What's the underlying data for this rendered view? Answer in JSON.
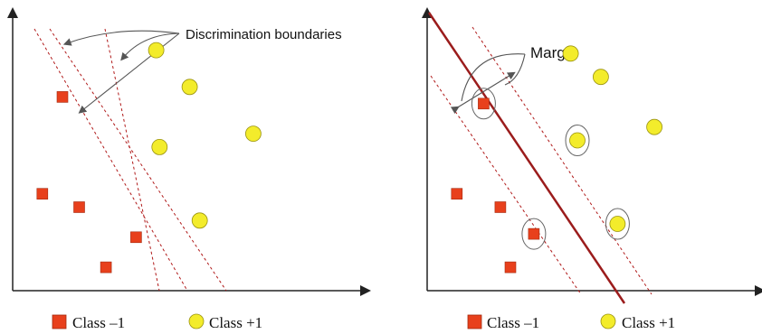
{
  "left_panel": {
    "annotation": "Discrimination boundaries",
    "class_neg_points": [
      [
        1.0,
        5.8
      ],
      [
        0.4,
        2.9
      ],
      [
        1.5,
        2.5
      ],
      [
        2.3,
        0.7
      ],
      [
        3.2,
        1.6
      ]
    ],
    "class_pos_points": [
      [
        3.8,
        7.2
      ],
      [
        4.8,
        6.1
      ],
      [
        3.9,
        4.3
      ],
      [
        6.7,
        4.7
      ],
      [
        5.1,
        2.1
      ]
    ]
  },
  "right_panel": {
    "annotation": "Margin",
    "class_neg_points": [
      [
        1.2,
        5.6
      ],
      [
        0.4,
        2.9
      ],
      [
        1.7,
        2.5
      ],
      [
        2.7,
        1.7
      ],
      [
        2.0,
        0.7
      ]
    ],
    "class_pos_points": [
      [
        3.8,
        7.1
      ],
      [
        4.7,
        6.4
      ],
      [
        4.0,
        4.5
      ],
      [
        6.3,
        4.9
      ],
      [
        5.2,
        2.0
      ]
    ],
    "support_vector_points": [
      [
        1.2,
        5.6
      ],
      [
        2.7,
        1.7
      ],
      [
        4.0,
        4.5
      ],
      [
        5.2,
        2.0
      ]
    ]
  },
  "legend": {
    "class_neg_label": "Class –1",
    "class_pos_label": "Class +1"
  },
  "colors": {
    "class_neg": "#e8401c",
    "class_pos": "#f3ec2b",
    "boundary": "#b01919",
    "axis": "#222222"
  }
}
